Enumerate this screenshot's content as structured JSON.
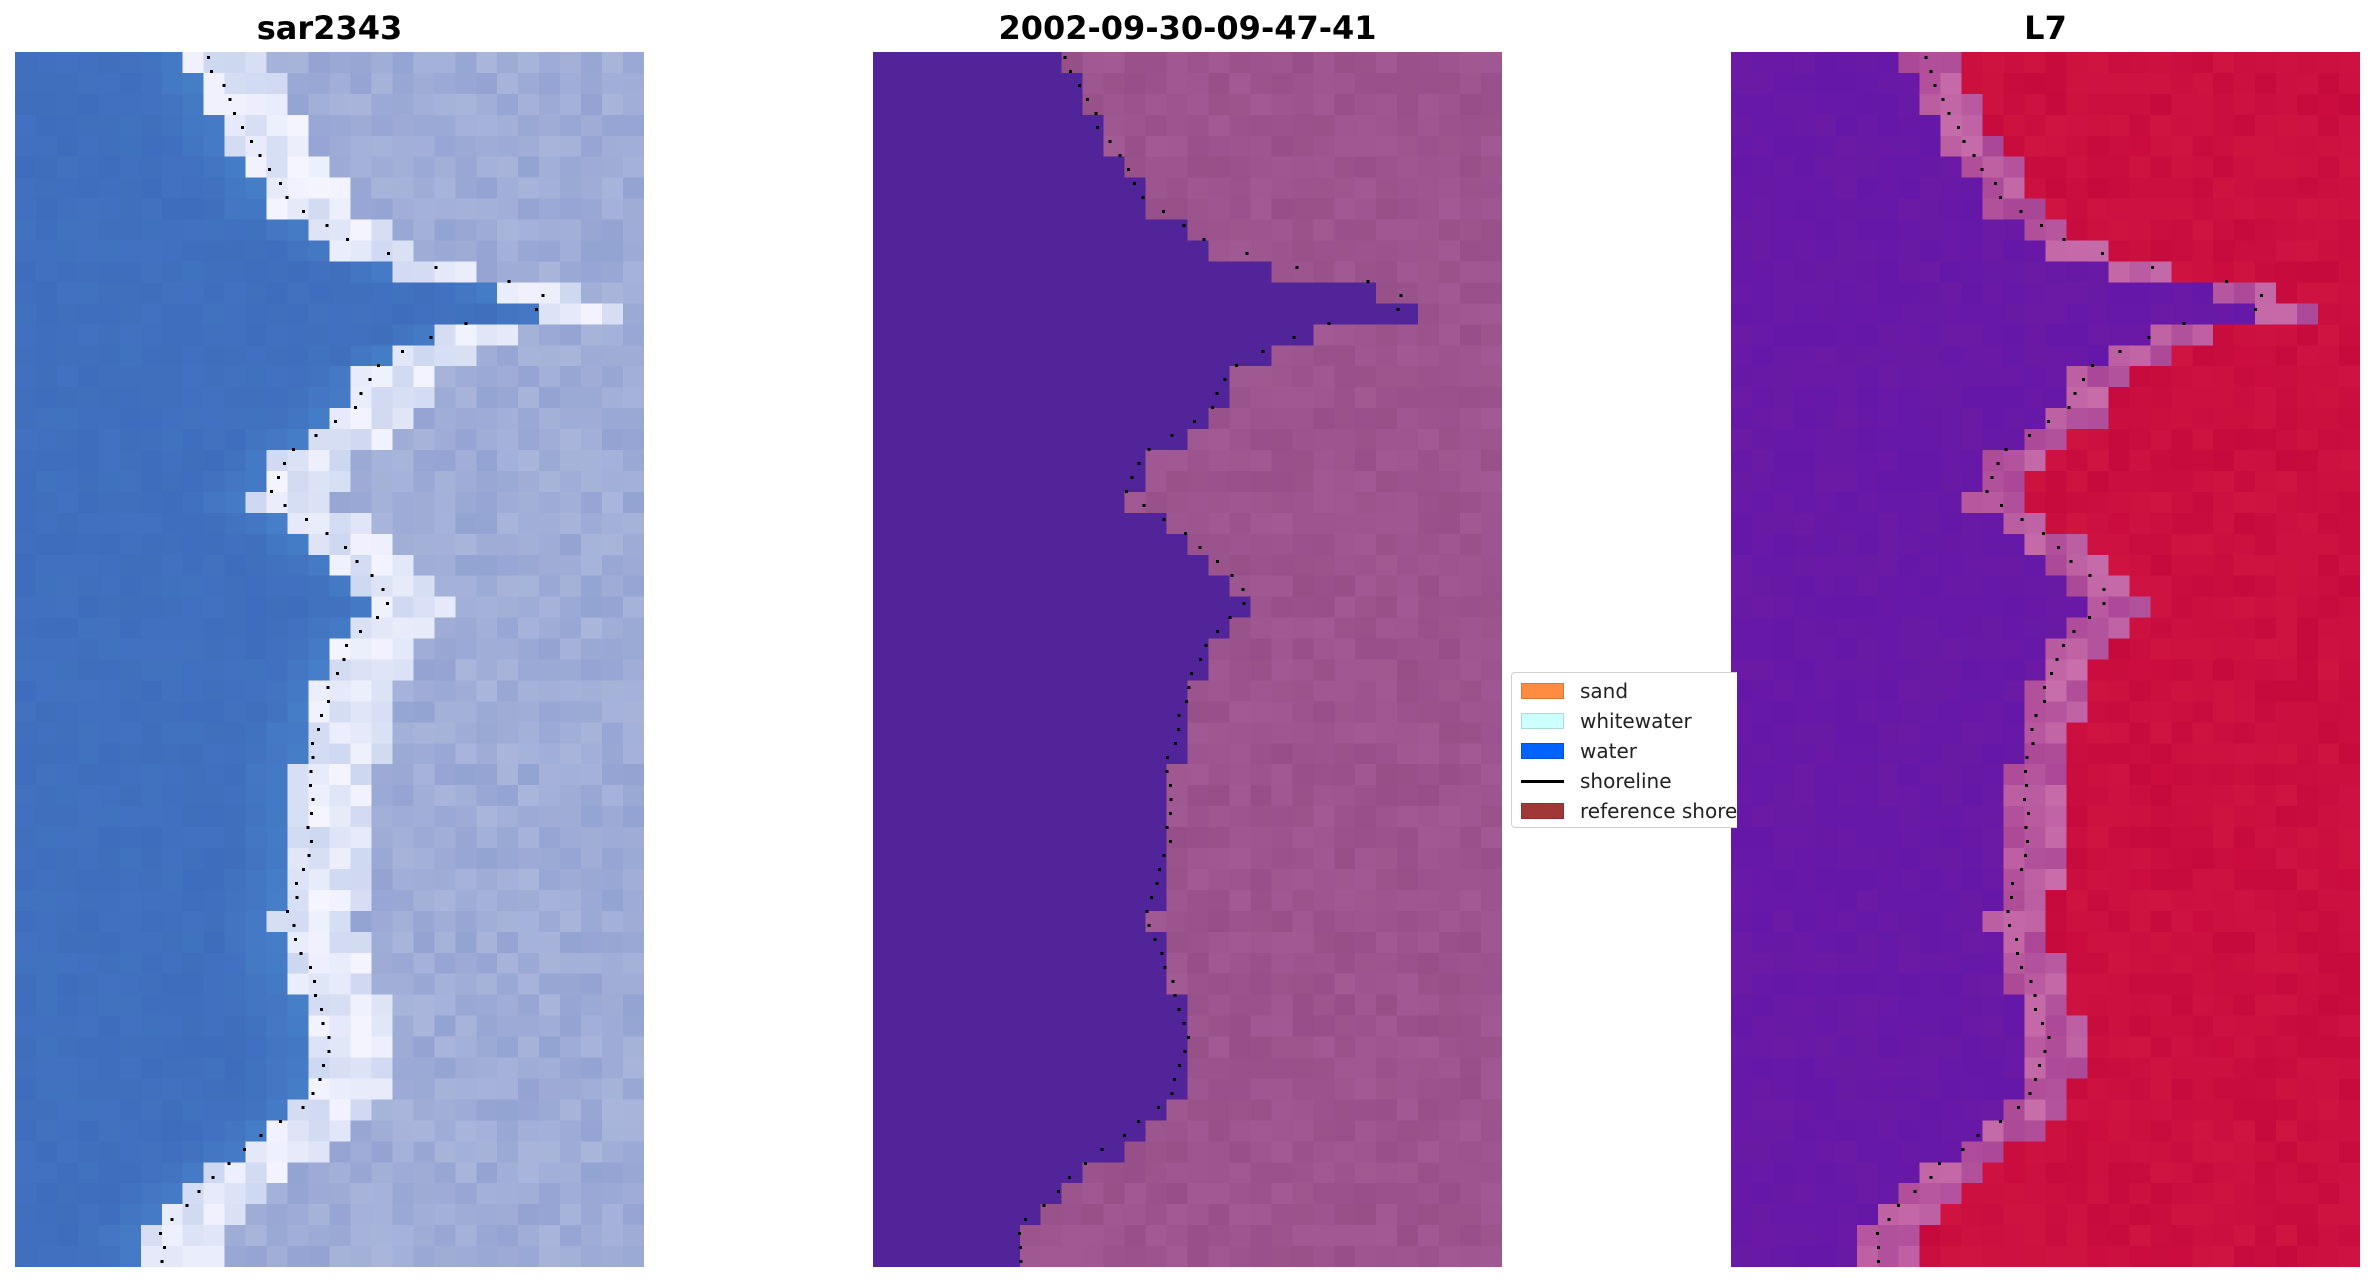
{
  "titles": {
    "rgb": "sar2343",
    "classification": "2002-09-30-09-47-41",
    "index": "L7"
  },
  "legend": {
    "items": [
      {
        "label": "sand",
        "color": "#ff8c40",
        "kind": "patch"
      },
      {
        "label": "whitewater",
        "color": "#ccfffd",
        "kind": "patch"
      },
      {
        "label": "water",
        "color": "#0062ff",
        "kind": "patch"
      },
      {
        "label": "shoreline",
        "color": "#000000",
        "kind": "line"
      },
      {
        "label": "reference shoreline",
        "color": "#a13838",
        "kind": "patch"
      }
    ]
  },
  "colors": {
    "rgb_water": "#3f6dbd",
    "rgb_land": "#a9b5da",
    "class_water": "#52249a",
    "class_land": "#a25a94",
    "index_water": "#6a1aa4",
    "index_land": "#c70a3d"
  }
}
